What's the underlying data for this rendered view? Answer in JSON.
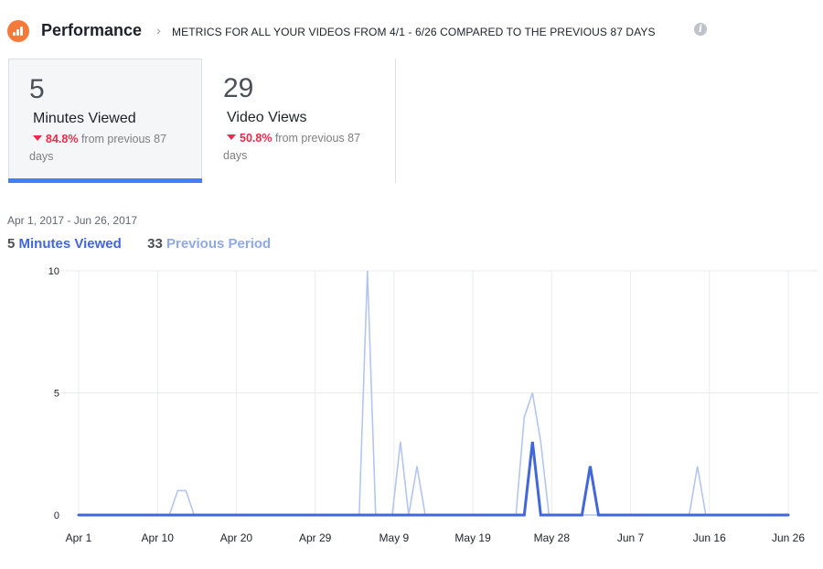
{
  "header": {
    "title": "Performance",
    "chevron": "›",
    "subtitle": "METRICS FOR ALL YOUR VIDEOS FROM 4/1 - 6/26 COMPARED TO THE PREVIOUS 87 DAYS",
    "info_icon": "info-icon",
    "logo_icon": "bar-chart-icon",
    "logo_color": "#f5793b"
  },
  "cards": [
    {
      "value": "5",
      "label": "Minutes Viewed",
      "change": "84.8%",
      "change_text": "from previous 87 days",
      "direction": "down",
      "selected": true
    },
    {
      "value": "29",
      "label": "Video Views",
      "change": "50.8%",
      "change_text": "from previous 87 days",
      "direction": "down",
      "selected": false
    }
  ],
  "date_range": "Apr 1, 2017 - Jun 26, 2017",
  "legend": {
    "current_value": "5",
    "current_label": "Minutes Viewed",
    "previous_value": "33",
    "previous_label": "Previous Period"
  },
  "colors": {
    "current": "#4267d8",
    "previous": "#b4c6ee",
    "negative": "#f0284a",
    "selected_bar": "#4080ff"
  },
  "chart_data": {
    "type": "line",
    "x_start": "Apr 1",
    "x_end": "Jun 26",
    "x_tick_labels": [
      "Apr 1",
      "Apr 10",
      "Apr 20",
      "Apr 29",
      "May 9",
      "May 19",
      "May 28",
      "Jun 7",
      "Jun 16",
      "Jun 26"
    ],
    "y_ticks": [
      0,
      5,
      10
    ],
    "ylim": [
      0,
      10
    ],
    "grid": true,
    "series": [
      {
        "name": "Minutes Viewed",
        "points": [
          [
            "Apr 1",
            0
          ],
          [
            "May 25",
            0
          ],
          [
            "May 26",
            3
          ],
          [
            "May 27",
            0
          ],
          [
            "Jun 1",
            0
          ],
          [
            "Jun 2",
            2
          ],
          [
            "Jun 3",
            0
          ],
          [
            "Jun 26",
            0
          ]
        ]
      },
      {
        "name": "Previous Period",
        "points": [
          [
            "Apr 1",
            0
          ],
          [
            "Apr 12",
            0
          ],
          [
            "Apr 13",
            1
          ],
          [
            "Apr 14",
            1
          ],
          [
            "Apr 15",
            0
          ],
          [
            "May 5",
            0
          ],
          [
            "May 6",
            10
          ],
          [
            "May 7",
            0
          ],
          [
            "May 9",
            0
          ],
          [
            "May 10",
            3
          ],
          [
            "May 11",
            0
          ],
          [
            "May 12",
            2
          ],
          [
            "May 13",
            0
          ],
          [
            "May 24",
            0
          ],
          [
            "May 25",
            4
          ],
          [
            "May 26",
            5
          ],
          [
            "May 27",
            3
          ],
          [
            "May 28",
            0
          ],
          [
            "Jun 14",
            0
          ],
          [
            "Jun 15",
            2
          ],
          [
            "Jun 16",
            0
          ],
          [
            "Jun 26",
            0
          ]
        ]
      }
    ]
  }
}
